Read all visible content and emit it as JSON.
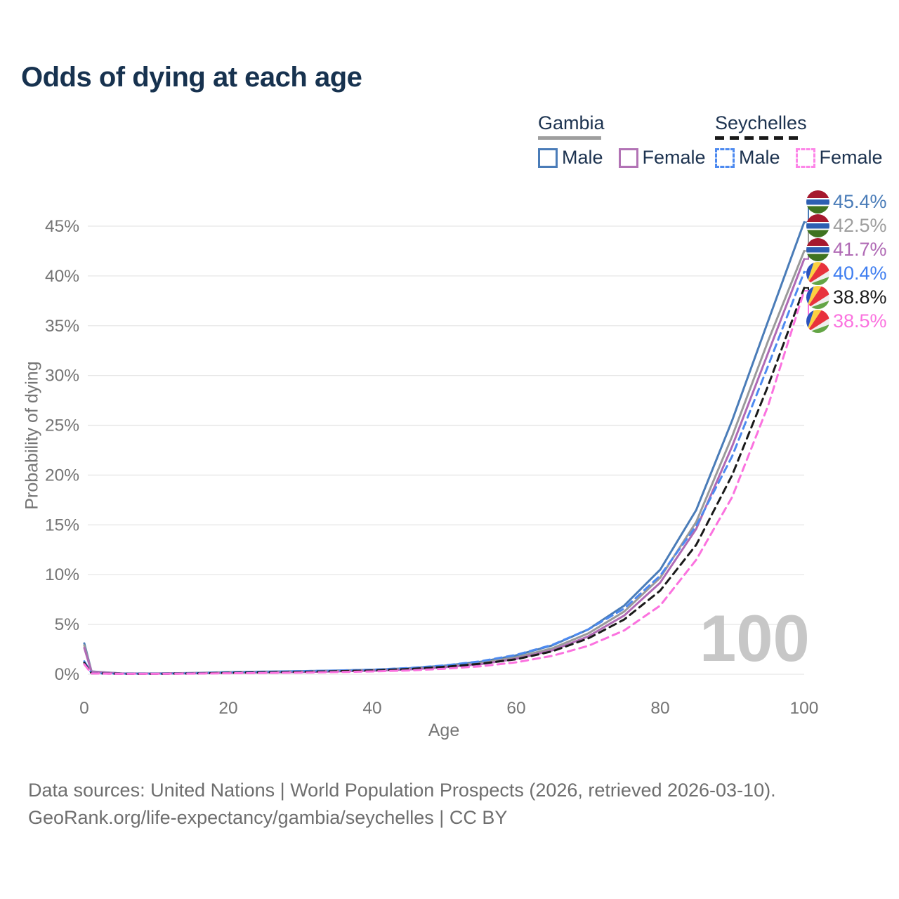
{
  "title": "Odds of dying at each age",
  "legend": {
    "groups": [
      {
        "label": "Gambia",
        "line_style": "solid",
        "underline_color": "#9e9e9e",
        "items": [
          {
            "label": "Male",
            "color": "#4a7cb8",
            "dash": false
          },
          {
            "label": "Female",
            "color": "#b273b5",
            "dash": false
          }
        ]
      },
      {
        "label": "Seychelles",
        "line_style": "dashed",
        "underline_color": "#1a1a1a",
        "items": [
          {
            "label": "Male",
            "color": "#4d8af0",
            "dash": true
          },
          {
            "label": "Female",
            "color": "#fd86e8",
            "dash": true
          }
        ]
      }
    ]
  },
  "watermark": "100",
  "chart_data": {
    "type": "line",
    "title": "Odds of dying at each age",
    "xlabel": "Age",
    "ylabel": "Probability of dying",
    "xlim": [
      0,
      100
    ],
    "ylim": [
      0,
      47
    ],
    "x_ticks": [
      0,
      20,
      40,
      60,
      80,
      100
    ],
    "y_ticks": [
      "0%",
      "5%",
      "10%",
      "15%",
      "20%",
      "25%",
      "30%",
      "35%",
      "40%",
      "45%"
    ],
    "grid": "horizontal",
    "legend_position": "top-right",
    "x": [
      0,
      1,
      5,
      10,
      15,
      20,
      25,
      30,
      35,
      40,
      45,
      50,
      55,
      60,
      65,
      70,
      75,
      80,
      85,
      90,
      95,
      100
    ],
    "series": [
      {
        "name": "Gambia Male",
        "country": "Gambia",
        "sex": "Male",
        "color": "#4a7cb8",
        "dash": false,
        "end_value_pct": 45.4,
        "values": [
          3.1,
          0.28,
          0.09,
          0.08,
          0.13,
          0.21,
          0.26,
          0.31,
          0.37,
          0.45,
          0.6,
          0.85,
          1.25,
          1.9,
          2.9,
          4.5,
          6.9,
          10.5,
          16.5,
          25.5,
          35.5,
          45.4
        ]
      },
      {
        "name": "Gambia",
        "country": "Gambia",
        "sex": "All",
        "color": "#9a9a9a",
        "dash": false,
        "end_value_pct": 42.5,
        "values": [
          2.9,
          0.26,
          0.08,
          0.07,
          0.11,
          0.18,
          0.22,
          0.27,
          0.32,
          0.4,
          0.54,
          0.77,
          1.12,
          1.7,
          2.6,
          4.1,
          6.3,
          9.7,
          15.3,
          23.9,
          33.5,
          42.5
        ]
      },
      {
        "name": "Gambia Female",
        "country": "Gambia",
        "sex": "Female",
        "color": "#b06ab5",
        "dash": false,
        "end_value_pct": 41.7,
        "values": [
          2.65,
          0.24,
          0.08,
          0.07,
          0.09,
          0.14,
          0.18,
          0.22,
          0.28,
          0.35,
          0.48,
          0.7,
          1.0,
          1.55,
          2.4,
          3.8,
          5.9,
          9.2,
          14.6,
          22.9,
          32.3,
          41.7
        ]
      },
      {
        "name": "Seychelles Male",
        "country": "Seychelles",
        "sex": "Male",
        "color": "#4d8af0",
        "dash": true,
        "end_value_pct": 40.4,
        "values": [
          1.3,
          0.1,
          0.05,
          0.05,
          0.1,
          0.18,
          0.24,
          0.3,
          0.37,
          0.46,
          0.62,
          0.88,
          1.3,
          1.95,
          2.95,
          4.5,
          6.6,
          9.9,
          14.9,
          21.9,
          31.0,
          40.4
        ]
      },
      {
        "name": "Seychelles",
        "country": "Seychelles",
        "sex": "All",
        "color": "#1a1a1a",
        "dash": true,
        "end_value_pct": 38.8,
        "values": [
          1.15,
          0.09,
          0.05,
          0.04,
          0.08,
          0.14,
          0.19,
          0.24,
          0.3,
          0.38,
          0.52,
          0.74,
          1.05,
          1.5,
          2.3,
          3.6,
          5.5,
          8.4,
          13.0,
          20.0,
          29.0,
          38.8
        ]
      },
      {
        "name": "Seychelles Female",
        "country": "Seychelles",
        "sex": "Female",
        "color": "#fb72df",
        "dash": true,
        "end_value_pct": 38.5,
        "values": [
          1.0,
          0.08,
          0.04,
          0.04,
          0.06,
          0.1,
          0.13,
          0.17,
          0.22,
          0.28,
          0.38,
          0.55,
          0.8,
          1.2,
          1.85,
          2.85,
          4.4,
          6.9,
          11.5,
          17.8,
          27.0,
          38.5
        ]
      }
    ]
  },
  "end_labels": [
    {
      "flag": "gambia-flag",
      "value": "45.4%",
      "color": "#4a7cb8"
    },
    {
      "flag": "gambia-flag",
      "value": "42.5%",
      "color": "#9e9e9e"
    },
    {
      "flag": "gambia-flag",
      "value": "41.7%",
      "color": "#b06ab5"
    },
    {
      "flag": "seychelles-flag",
      "value": "40.4%",
      "color": "#3f7ef0"
    },
    {
      "flag": "seychelles-flag",
      "value": "38.8%",
      "color": "#1a1a1a"
    },
    {
      "flag": "seychelles-flag",
      "value": "38.5%",
      "color": "#fb72df"
    }
  ],
  "footer": {
    "line1": "Data sources: United Nations | World Population Prospects (2026, retrieved 2026-03-10).",
    "line2": "GeoRank.org/life-expectancy/gambia/seychelles | CC BY"
  },
  "colors": {
    "title_text": "#17324f",
    "axis_text": "#757575",
    "gridline": "#e7e7e7",
    "watermark": "#c7c7c7",
    "footer_text": "#6e6e6e"
  }
}
